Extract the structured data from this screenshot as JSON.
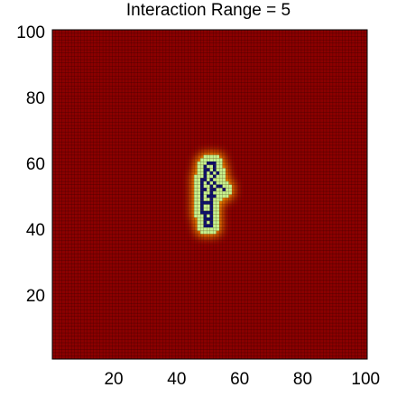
{
  "chart_data": {
    "type": "heatmap",
    "title": "Interaction Range = 5",
    "xlabel": "",
    "ylabel": "",
    "xlim": [
      1,
      100
    ],
    "ylim": [
      1,
      100
    ],
    "x_ticks": [
      20,
      40,
      60,
      80,
      100
    ],
    "y_ticks": [
      20,
      40,
      60,
      80,
      100
    ],
    "grid_size": [
      100,
      100
    ],
    "background_value": 0,
    "colormap": [
      "#8b0000",
      "#c80000",
      "#ff4000",
      "#ffa000",
      "#ffff60",
      "#c8f08c",
      "#10106e"
    ],
    "cluster": {
      "core_cells": [
        [
          50,
          60
        ],
        [
          51,
          60
        ],
        [
          52,
          60
        ],
        [
          49,
          59
        ],
        [
          52,
          59
        ],
        [
          49,
          58
        ],
        [
          50,
          58
        ],
        [
          52,
          58
        ],
        [
          49,
          57
        ],
        [
          51,
          57
        ],
        [
          53,
          57
        ],
        [
          49,
          56
        ],
        [
          52,
          56
        ],
        [
          48,
          55
        ],
        [
          49,
          55
        ],
        [
          51,
          55
        ],
        [
          48,
          54
        ],
        [
          50,
          54
        ],
        [
          52,
          54
        ],
        [
          48,
          53
        ],
        [
          51,
          53
        ],
        [
          53,
          53
        ],
        [
          54,
          53
        ],
        [
          48,
          52
        ],
        [
          49,
          52
        ],
        [
          51,
          52
        ],
        [
          52,
          52
        ],
        [
          55,
          52
        ],
        [
          48,
          51
        ],
        [
          51,
          51
        ],
        [
          48,
          50
        ],
        [
          50,
          50
        ],
        [
          51,
          50
        ],
        [
          52,
          50
        ],
        [
          48,
          49
        ],
        [
          51,
          49
        ],
        [
          48,
          48
        ],
        [
          49,
          48
        ],
        [
          50,
          48
        ],
        [
          51,
          48
        ],
        [
          48,
          47
        ],
        [
          51,
          47
        ],
        [
          48,
          46
        ],
        [
          51,
          46
        ],
        [
          48,
          45
        ],
        [
          49,
          45
        ],
        [
          50,
          45
        ],
        [
          51,
          45
        ],
        [
          49,
          44
        ],
        [
          51,
          44
        ],
        [
          49,
          43
        ],
        [
          50,
          43
        ],
        [
          51,
          43
        ],
        [
          49,
          42
        ],
        [
          51,
          42
        ],
        [
          49,
          41
        ],
        [
          50,
          41
        ],
        [
          51,
          41
        ]
      ],
      "halo_value": 5,
      "core_value": 6
    }
  }
}
